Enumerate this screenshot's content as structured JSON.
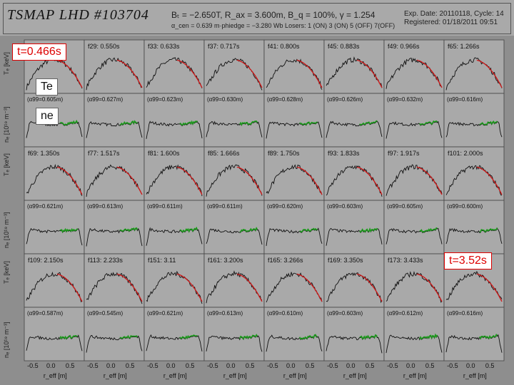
{
  "header": {
    "title": "TSMAP LHD #103704",
    "params_line1": "Bₜ = −2.650T, R_ax = 3.600m, B_q = 100%, γ = 1.254",
    "params_line2": "α_cen = 0.639 m·phiedge = −3.280 Wb Losers: 1 (ON) 3 (ON) 5 (OFF) 7(OFF)",
    "exp_line1": "Exp. Date: 20110118, Cycle: 14",
    "exp_line2": "Registered: 01/18/2011 09:51"
  },
  "annotations": {
    "t_start": "t=0.466s",
    "te_label": "Te",
    "ne_label": "ne",
    "t_end": "t=3.52s"
  },
  "axes": {
    "te_ylabel": "Tₑ [keV]",
    "ne_ylabel": "nₑ [10¹⁹ m⁻³]",
    "xlabel": "r_eff [m]",
    "xticks": [
      "-0.5",
      "0.0",
      "0.5"
    ]
  },
  "colors": {
    "background": "#8e8e8e",
    "panel": "#a9a9a9",
    "data": "#111111",
    "te_fit": "#d01818",
    "ne_fit": "#1c9a1c",
    "annotation_red": "#dd0000"
  },
  "panels": [
    {
      "te_label": "",
      "ne_label": "(α99=0.605m)"
    },
    {
      "te_label": "f29: 0.550s",
      "ne_label": "(α99=0.627m)"
    },
    {
      "te_label": "f33: 0.633s",
      "ne_label": "(α99=0.623m)"
    },
    {
      "te_label": "f37: 0.717s",
      "ne_label": "(α99=0.630m)"
    },
    {
      "te_label": "f41: 0.800s",
      "ne_label": "(α99=0.628m)"
    },
    {
      "te_label": "f45: 0.883s",
      "ne_label": "(α99=0.626m)"
    },
    {
      "te_label": "f49: 0.966s",
      "ne_label": "(α99=0.632m)"
    },
    {
      "te_label": "f65: 1.266s",
      "ne_label": "(α99=0.616m)"
    },
    {
      "te_label": "f69: 1.350s",
      "ne_label": "(α99=0.621m)"
    },
    {
      "te_label": "f77: 1.517s",
      "ne_label": "(α99=0.613m)"
    },
    {
      "te_label": "f81: 1.600s",
      "ne_label": "(α99=0.611m)"
    },
    {
      "te_label": "f85: 1.666s",
      "ne_label": "(α99=0.611m)"
    },
    {
      "te_label": "f89: 1.750s",
      "ne_label": "(α99=0.620m)"
    },
    {
      "te_label": "f93: 1.833s",
      "ne_label": "(α99=0.603m)"
    },
    {
      "te_label": "f97: 1.917s",
      "ne_label": "(α99=0.605m)"
    },
    {
      "te_label": "f101: 2.000s",
      "ne_label": "(α99=0.600m)"
    },
    {
      "te_label": "f109: 2.150s",
      "ne_label": "(α99=0.587m)"
    },
    {
      "te_label": "f113: 2.233s",
      "ne_label": "(α99=0.545m)"
    },
    {
      "te_label": "f151: 3.11",
      "ne_label": "(α99=0.621m)"
    },
    {
      "te_label": "f161: 3.200s",
      "ne_label": "(α99=0.613m)"
    },
    {
      "te_label": "f165: 3.266s",
      "ne_label": "(α99=0.610m)"
    },
    {
      "te_label": "f169: 3.350s",
      "ne_label": "(α99=0.603m)"
    },
    {
      "te_label": "f173: 3.433s",
      "ne_label": "(α99=0.612m)"
    },
    {
      "te_label": "",
      "ne_label": "(α99=0.616m)"
    }
  ]
}
